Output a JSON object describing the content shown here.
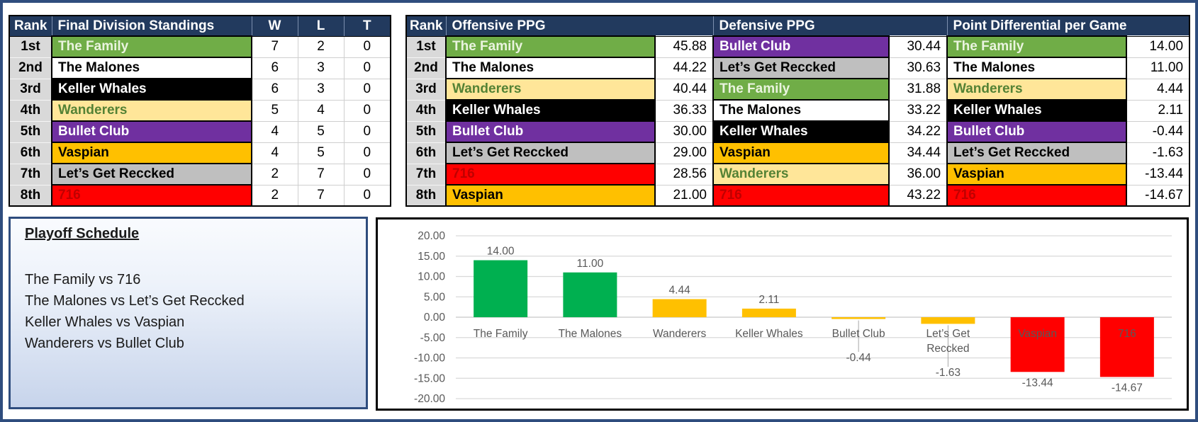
{
  "colors": {
    "header_bg": "#223A5E",
    "outer_border": "#2F4D7E",
    "chart_green": "#00B050",
    "chart_gold": "#FFC000",
    "chart_red": "#FF0000",
    "grid_line": "#D9D9D9",
    "axis_text": "#595959"
  },
  "standings": {
    "headers": {
      "rank": "Rank",
      "title": "Final Division Standings",
      "w": "W",
      "l": "L",
      "t": "T"
    },
    "rows": [
      {
        "rank": "1st",
        "team": "The Family",
        "w": "7",
        "l": "2",
        "t": "0",
        "bg": "#70AD47",
        "fg": "#EAF4DF"
      },
      {
        "rank": "2nd",
        "team": "The Malones",
        "w": "6",
        "l": "3",
        "t": "0",
        "bg": "#FFFFFF",
        "fg": "#000000"
      },
      {
        "rank": "3rd",
        "team": "Keller Whales",
        "w": "6",
        "l": "3",
        "t": "0",
        "bg": "#000000",
        "fg": "#FFFFFF"
      },
      {
        "rank": "4th",
        "team": "Wanderers",
        "w": "5",
        "l": "4",
        "t": "0",
        "bg": "#FFE699",
        "fg": "#548235"
      },
      {
        "rank": "5th",
        "team": "Bullet Club",
        "w": "4",
        "l": "5",
        "t": "0",
        "bg": "#7030A0",
        "fg": "#FFFFFF"
      },
      {
        "rank": "6th",
        "team": "Vaspian",
        "w": "4",
        "l": "5",
        "t": "0",
        "bg": "#FFC000",
        "fg": "#000000"
      },
      {
        "rank": "7th",
        "team": "Let’s Get Reccked",
        "w": "2",
        "l": "7",
        "t": "0",
        "bg": "#BFBFBF",
        "fg": "#000000"
      },
      {
        "rank": "8th",
        "team": "716",
        "w": "2",
        "l": "7",
        "t": "0",
        "bg": "#FF0000",
        "fg": "#C00000"
      }
    ]
  },
  "stats": {
    "rank_header": "Rank",
    "ranks": [
      "1st",
      "2nd",
      "3rd",
      "4th",
      "5th",
      "6th",
      "7th",
      "8th"
    ],
    "sections": [
      {
        "title": "Offensive PPG",
        "rows": [
          {
            "team": "The Family",
            "value": "45.88",
            "bg": "#70AD47",
            "fg": "#EAF4DF"
          },
          {
            "team": "The Malones",
            "value": "44.22",
            "bg": "#FFFFFF",
            "fg": "#000000"
          },
          {
            "team": "Wanderers",
            "value": "40.44",
            "bg": "#FFE699",
            "fg": "#548235"
          },
          {
            "team": "Keller Whales",
            "value": "36.33",
            "bg": "#000000",
            "fg": "#FFFFFF"
          },
          {
            "team": "Bullet Club",
            "value": "30.00",
            "bg": "#7030A0",
            "fg": "#FFFFFF"
          },
          {
            "team": "Let’s Get Reccked",
            "value": "29.00",
            "bg": "#BFBFBF",
            "fg": "#000000"
          },
          {
            "team": "716",
            "value": "28.56",
            "bg": "#FF0000",
            "fg": "#C00000"
          },
          {
            "team": "Vaspian",
            "value": "21.00",
            "bg": "#FFC000",
            "fg": "#000000"
          }
        ]
      },
      {
        "title": "Defensive PPG",
        "rows": [
          {
            "team": "Bullet Club",
            "value": "30.44",
            "bg": "#7030A0",
            "fg": "#FFFFFF"
          },
          {
            "team": "Let’s Get Reccked",
            "value": "30.63",
            "bg": "#BFBFBF",
            "fg": "#000000"
          },
          {
            "team": "The Family",
            "value": "31.88",
            "bg": "#70AD47",
            "fg": "#EAF4DF"
          },
          {
            "team": "The Malones",
            "value": "33.22",
            "bg": "#FFFFFF",
            "fg": "#000000"
          },
          {
            "team": "Keller Whales",
            "value": "34.22",
            "bg": "#000000",
            "fg": "#FFFFFF"
          },
          {
            "team": "Vaspian",
            "value": "34.44",
            "bg": "#FFC000",
            "fg": "#000000"
          },
          {
            "team": "Wanderers",
            "value": "36.00",
            "bg": "#FFE699",
            "fg": "#548235"
          },
          {
            "team": "716",
            "value": "43.22",
            "bg": "#FF0000",
            "fg": "#C00000"
          }
        ]
      },
      {
        "title": "Point Differential per Game",
        "rows": [
          {
            "team": "The Family",
            "value": "14.00",
            "bg": "#70AD47",
            "fg": "#EAF4DF"
          },
          {
            "team": "The Malones",
            "value": "11.00",
            "bg": "#FFFFFF",
            "fg": "#000000"
          },
          {
            "team": "Wanderers",
            "value": "4.44",
            "bg": "#FFE699",
            "fg": "#548235"
          },
          {
            "team": "Keller Whales",
            "value": "2.11",
            "bg": "#000000",
            "fg": "#FFFFFF"
          },
          {
            "team": "Bullet Club",
            "value": "-0.44",
            "bg": "#7030A0",
            "fg": "#FFFFFF"
          },
          {
            "team": "Let’s Get Reccked",
            "value": "-1.63",
            "bg": "#BFBFBF",
            "fg": "#000000"
          },
          {
            "team": "Vaspian",
            "value": "-13.44",
            "bg": "#FFC000",
            "fg": "#000000"
          },
          {
            "team": "716",
            "value": "-14.67",
            "bg": "#FF0000",
            "fg": "#C00000"
          }
        ]
      }
    ]
  },
  "playoffs": {
    "title": "Playoff Schedule",
    "matchups": [
      "The Family vs 716",
      "The Malones vs Let’s Get Reccked",
      "Keller Whales vs Vaspian",
      "Wanderers vs Bullet Club"
    ]
  },
  "chart_data": {
    "type": "bar",
    "title": "",
    "categories": [
      "The Family",
      "The Malones",
      "Wanderers",
      "Keller Whales",
      "Bullet Club",
      "Let’s Get Reccked",
      "Vaspian",
      "716"
    ],
    "values": [
      14.0,
      11.0,
      4.44,
      2.11,
      -0.44,
      -1.63,
      -13.44,
      -14.67
    ],
    "labels": [
      "14.00",
      "11.00",
      "4.44",
      "2.11",
      "-0.44",
      "-1.63",
      "-13.44",
      "-14.67"
    ],
    "bar_colors": [
      "#00B050",
      "#00B050",
      "#FFC000",
      "#FFC000",
      "#FFC000",
      "#FFC000",
      "#FF0000",
      "#FF0000"
    ],
    "ylim": [
      -20,
      20
    ],
    "ytick_step": 5,
    "ytick_labels": [
      "20.00",
      "15.00",
      "10.00",
      "5.00",
      "0.00",
      "-5.00",
      "-10.00",
      "-15.00",
      "-20.00"
    ],
    "grid": true,
    "legend": false,
    "xlabel": "",
    "ylabel": ""
  }
}
